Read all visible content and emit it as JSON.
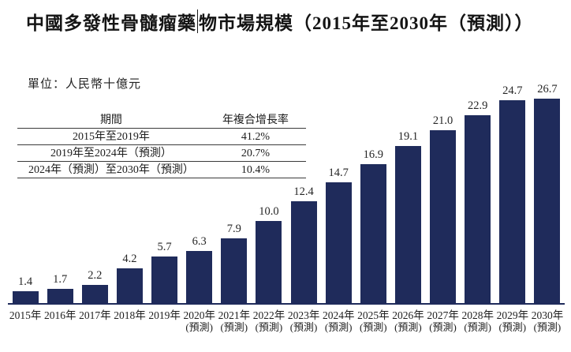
{
  "title": {
    "part1": "中國多發性骨髓瘤藥",
    "part2": "物市場規模（2015年至2030年（預測））"
  },
  "unit_label": "單位：人民幣十億元",
  "cagr_table": {
    "headers": [
      "期間",
      "年複合增長率"
    ],
    "rows": [
      {
        "period": "2015年至2019年",
        "cagr": "41.2%"
      },
      {
        "period": "2019年至2024年（預測）",
        "cagr": "20.7%"
      },
      {
        "period": "2024年（預測）至2030年（預測）",
        "cagr": "10.4%"
      }
    ]
  },
  "chart_data": {
    "type": "bar",
    "title": "中國多發性骨髓瘤藥物市場規模（2015年至2030年（預測））",
    "unit": "人民幣十億元",
    "categories": [
      "2015年",
      "2016年",
      "2017年",
      "2018年",
      "2019年",
      "2020年",
      "2021年",
      "2022年",
      "2023年",
      "2024年",
      "2025年",
      "2026年",
      "2027年",
      "2028年",
      "2029年",
      "2030年"
    ],
    "category_notes": [
      "",
      "",
      "",
      "",
      "",
      "(預測)",
      "(預測)",
      "(預測)",
      "(預測)",
      "(預測)",
      "(預測)",
      "(預測)",
      "(預測)",
      "(預測)",
      "(預測)",
      "(預測)"
    ],
    "values": [
      1.4,
      1.7,
      2.2,
      4.2,
      5.7,
      6.3,
      7.9,
      10.0,
      12.4,
      14.7,
      16.9,
      19.1,
      21.0,
      22.9,
      24.7,
      26.7
    ],
    "value_labels": [
      "1.4",
      "1.7",
      "2.2",
      "4.2",
      "5.7",
      "6.3",
      "7.9",
      "10.0",
      "12.4",
      "14.7",
      "16.9",
      "19.1",
      "21.0",
      "22.9",
      "24.7",
      "26.7"
    ],
    "xlabel": "",
    "ylabel": "人民幣十億元",
    "ylim": [
      0,
      26.7
    ],
    "grid": false,
    "legend": false,
    "bar_color": "#1f2b5b"
  }
}
